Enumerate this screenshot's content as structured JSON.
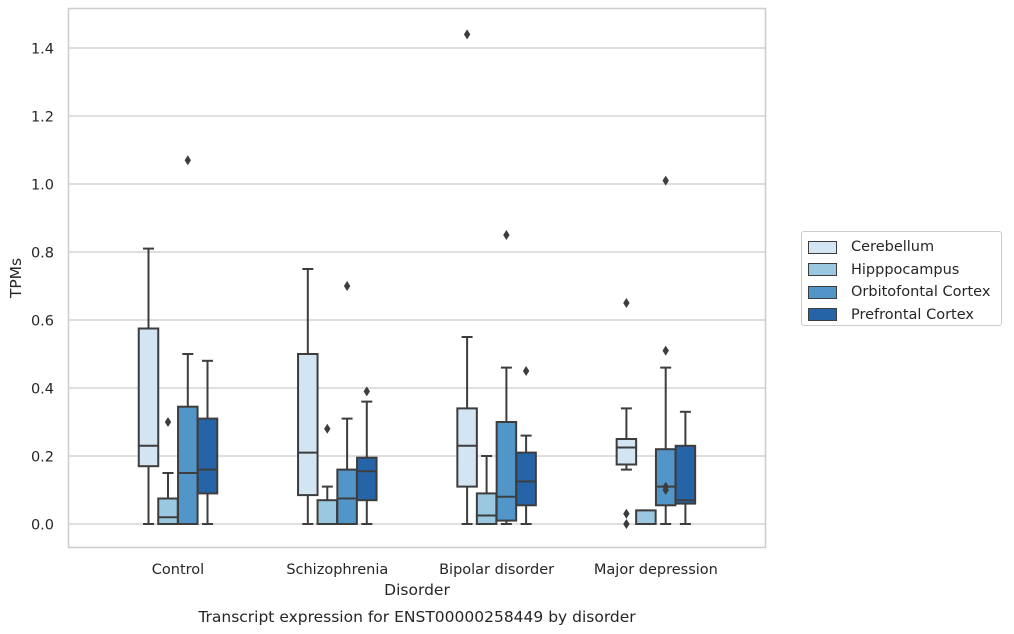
{
  "chart_data": {
    "type": "box",
    "caption": "Transcript expression for ENST00000258449 by disorder",
    "xlabel": "Disorder",
    "ylabel": "TPMs",
    "ylim": [
      -0.07,
      1.52
    ],
    "yticks": [
      "0.0",
      "0.2",
      "0.4",
      "0.6",
      "0.8",
      "1.0",
      "1.2",
      "1.4"
    ],
    "grid": "horizontal",
    "legend_position": "right",
    "categories": [
      "Control",
      "Schizophrenia",
      "Bipolar disorder",
      "Major depression"
    ],
    "series": [
      {
        "name": "Cerebellum",
        "color": "#d3e4f3",
        "boxes": [
          {
            "whislo": 0.0,
            "q1": 0.17,
            "med": 0.23,
            "q3": 0.575,
            "whishi": 0.81,
            "fliers": []
          },
          {
            "whislo": 0.0,
            "q1": 0.085,
            "med": 0.21,
            "q3": 0.5,
            "whishi": 0.75,
            "fliers": []
          },
          {
            "whislo": 0.0,
            "q1": 0.11,
            "med": 0.23,
            "q3": 0.34,
            "whishi": 0.55,
            "fliers": [
              1.44
            ]
          },
          {
            "whislo": 0.16,
            "q1": 0.175,
            "med": 0.225,
            "q3": 0.25,
            "whishi": 0.34,
            "fliers": [
              0.65,
              0.03,
              0.0
            ]
          }
        ]
      },
      {
        "name": "Hipppocampus",
        "color": "#9ac8e0",
        "boxes": [
          {
            "whislo": 0.0,
            "q1": 0.0,
            "med": 0.02,
            "q3": 0.075,
            "whishi": 0.15,
            "fliers": [
              0.3
            ]
          },
          {
            "whislo": 0.0,
            "q1": 0.0,
            "med": 0.0,
            "q3": 0.07,
            "whishi": 0.11,
            "fliers": [
              0.28
            ]
          },
          {
            "whislo": 0.0,
            "q1": 0.0,
            "med": 0.025,
            "q3": 0.09,
            "whishi": 0.2,
            "fliers": []
          },
          {
            "whislo": 0.0,
            "q1": 0.0,
            "med": 0.0,
            "q3": 0.04,
            "whishi": 0.04,
            "fliers": []
          }
        ]
      },
      {
        "name": "Orbitofontal Cortex",
        "color": "#5296c9",
        "boxes": [
          {
            "whislo": 0.0,
            "q1": 0.0,
            "med": 0.15,
            "q3": 0.345,
            "whishi": 0.5,
            "fliers": [
              1.07
            ]
          },
          {
            "whislo": 0.0,
            "q1": 0.0,
            "med": 0.075,
            "q3": 0.16,
            "whishi": 0.31,
            "fliers": [
              0.7
            ]
          },
          {
            "whislo": 0.0,
            "q1": 0.01,
            "med": 0.08,
            "q3": 0.3,
            "whishi": 0.46,
            "fliers": [
              0.85
            ]
          },
          {
            "whislo": 0.0,
            "q1": 0.055,
            "med": 0.11,
            "q3": 0.22,
            "whishi": 0.46,
            "fliers": [
              1.01,
              0.51,
              0.11,
              0.1
            ]
          }
        ]
      },
      {
        "name": "Prefrontal Cortex",
        "color": "#2664a8",
        "boxes": [
          {
            "whislo": 0.0,
            "q1": 0.09,
            "med": 0.16,
            "q3": 0.31,
            "whishi": 0.48,
            "fliers": []
          },
          {
            "whislo": 0.0,
            "q1": 0.07,
            "med": 0.155,
            "q3": 0.195,
            "whishi": 0.36,
            "fliers": [
              0.39
            ]
          },
          {
            "whislo": 0.0,
            "q1": 0.055,
            "med": 0.125,
            "q3": 0.21,
            "whishi": 0.26,
            "fliers": [
              0.45
            ]
          },
          {
            "whislo": 0.0,
            "q1": 0.06,
            "med": 0.07,
            "q3": 0.23,
            "whishi": 0.33,
            "fliers": []
          }
        ]
      }
    ]
  }
}
